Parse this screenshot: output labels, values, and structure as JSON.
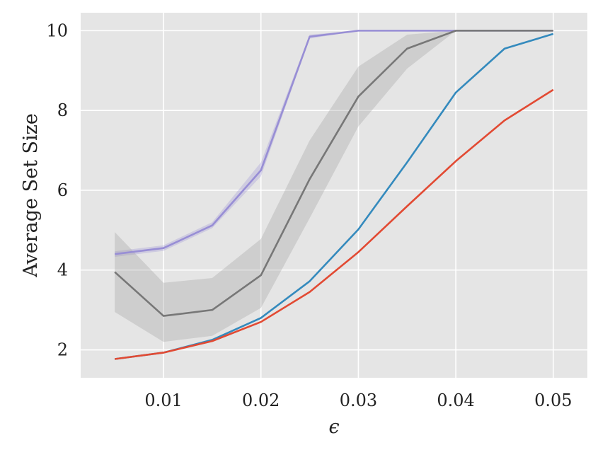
{
  "chart_data": {
    "type": "line",
    "xlabel": "ϵ",
    "ylabel": "Average Set Size",
    "xlim": [
      0.0015,
      0.0535
    ],
    "ylim": [
      1.3,
      10.45
    ],
    "x": [
      0.005,
      0.01,
      0.015,
      0.02,
      0.025,
      0.03,
      0.035,
      0.04,
      0.045,
      0.05
    ],
    "xticks": [
      0.01,
      0.02,
      0.03,
      0.04,
      0.05
    ],
    "xtick_labels": [
      "0.01",
      "0.02",
      "0.03",
      "0.04",
      "0.05"
    ],
    "yticks": [
      2,
      4,
      6,
      8,
      10
    ],
    "ytick_labels": [
      "2",
      "4",
      "6",
      "8",
      "10"
    ],
    "grid": true,
    "background": "#e5e5e5",
    "series": [
      {
        "color": "#988ed5",
        "band_color": "#988ed5",
        "values": [
          4.4,
          4.55,
          5.12,
          6.5,
          9.85,
          10.0,
          10.0,
          10.0,
          10.0,
          10.0
        ],
        "lower": [
          4.33,
          4.48,
          5.05,
          6.35,
          9.8,
          10.0,
          10.0,
          10.0,
          10.0,
          10.0
        ],
        "upper": [
          4.47,
          4.62,
          5.2,
          6.7,
          9.9,
          10.0,
          10.0,
          10.0,
          10.0,
          10.0
        ]
      },
      {
        "color": "#777777",
        "band_color": "#999999",
        "values": [
          3.95,
          2.85,
          3.0,
          3.87,
          6.28,
          8.35,
          9.55,
          10.0,
          10.0,
          10.0
        ],
        "lower": [
          2.95,
          2.2,
          2.35,
          3.05,
          5.3,
          7.6,
          9.05,
          10.0,
          10.0,
          10.0
        ],
        "upper": [
          4.95,
          3.68,
          3.8,
          4.78,
          7.25,
          9.1,
          9.9,
          10.0,
          10.0,
          10.0
        ]
      },
      {
        "color": "#348abd",
        "values": [
          1.77,
          1.93,
          2.25,
          2.8,
          3.72,
          5.02,
          6.7,
          8.45,
          9.55,
          9.92
        ]
      },
      {
        "color": "#e24a33",
        "values": [
          1.77,
          1.93,
          2.22,
          2.7,
          3.45,
          4.45,
          5.6,
          6.73,
          7.75,
          8.52
        ]
      }
    ]
  }
}
